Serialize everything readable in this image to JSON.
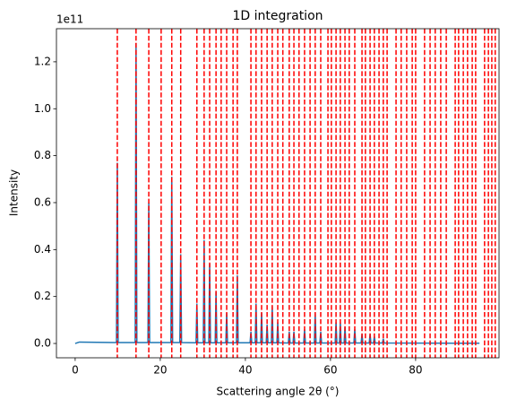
{
  "chart_data": {
    "type": "line",
    "title": "1D integration",
    "xlabel": "Scattering angle 2θ (°)",
    "ylabel": "Intensity",
    "y_offset_text": "1e11",
    "xlim": [
      -4.4,
      99.6
    ],
    "ylim": [
      -0.061,
      1.341
    ],
    "xticks": [
      0,
      20,
      40,
      60,
      80
    ],
    "yticks": [
      {
        "value": 0,
        "label": "0.0"
      },
      0.2,
      0.4,
      0.6,
      0.8,
      {
        "value": 1,
        "label": "1.0"
      },
      1.2
    ],
    "vlines": {
      "color": "#ff0000",
      "x": [
        9.9,
        14.3,
        17.3,
        20.2,
        22.7,
        24.8,
        28.6,
        30.3,
        31.6,
        33.1,
        34.3,
        35.6,
        37.1,
        38.1,
        41.3,
        42.5,
        43.8,
        45.1,
        46.3,
        47.6,
        48.8,
        50.3,
        51.4,
        52.6,
        53.9,
        55.2,
        56.4,
        57.7,
        59.4,
        60.2,
        61.3,
        62.3,
        63.4,
        64.4,
        65.7,
        67.4,
        68.2,
        69.3,
        70.3,
        71.4,
        72.4,
        73.3,
        75.4,
        76.6,
        77.9,
        79.2,
        80.0,
        82.1,
        83.4,
        84.6,
        85.9,
        87.2,
        89.3,
        90.1,
        91.2,
        92.2,
        93.3,
        94.1,
        96.2,
        97.1,
        97.9,
        98.7
      ]
    },
    "color": "#1f77b4",
    "x": [
      0,
      1,
      9.7,
      9.9,
      10.1,
      14.1,
      14.3,
      14.5,
      17.1,
      17.3,
      17.5,
      22.5,
      22.7,
      22.9,
      24.6,
      24.8,
      25.0,
      28.4,
      28.6,
      28.8,
      30.1,
      30.3,
      30.5,
      31.4,
      31.6,
      31.8,
      32.9,
      33.1,
      33.3,
      35.4,
      35.6,
      35.8,
      37.9,
      38.1,
      38.3,
      41.1,
      41.3,
      41.5,
      42.3,
      42.5,
      42.7,
      43.6,
      43.8,
      44.0,
      44.9,
      45.1,
      45.3,
      46.1,
      46.3,
      46.5,
      47.4,
      47.6,
      47.8,
      50.1,
      50.3,
      50.5,
      51.2,
      51.4,
      51.6,
      53.7,
      53.9,
      54.1,
      56.2,
      56.4,
      56.6,
      57.5,
      57.7,
      57.9,
      61.1,
      61.3,
      61.5,
      62.1,
      62.3,
      62.5,
      63.2,
      63.4,
      63.6,
      65.5,
      65.7,
      65.9,
      67.2,
      67.4,
      67.6,
      69.1,
      69.3,
      69.5,
      70.1,
      70.3,
      70.5,
      72.2,
      72.4,
      72.6,
      95
    ],
    "values": [
      0.0,
      0.006,
      0.004,
      0.77,
      0.004,
      0.004,
      1.28,
      0.004,
      0.004,
      0.6,
      0.004,
      0.004,
      0.71,
      0.004,
      0.004,
      0.38,
      0.004,
      0.003,
      0.17,
      0.003,
      0.003,
      0.44,
      0.003,
      0.003,
      0.34,
      0.003,
      0.003,
      0.22,
      0.003,
      0.003,
      0.13,
      0.003,
      0.003,
      0.29,
      0.003,
      0.003,
      0.05,
      0.003,
      0.003,
      0.17,
      0.003,
      0.003,
      0.13,
      0.003,
      0.003,
      0.08,
      0.003,
      0.003,
      0.16,
      0.003,
      0.003,
      0.09,
      0.003,
      0.002,
      0.05,
      0.002,
      0.002,
      0.05,
      0.002,
      0.002,
      0.06,
      0.002,
      0.002,
      0.13,
      0.002,
      0.002,
      0.05,
      0.002,
      0.002,
      0.09,
      0.002,
      0.002,
      0.09,
      0.002,
      0.002,
      0.07,
      0.002,
      0.002,
      0.06,
      0.002,
      0.002,
      0.04,
      0.002,
      0.002,
      0.04,
      0.002,
      0.002,
      0.03,
      0.002,
      0.002,
      0.02,
      0.002,
      0.001
    ]
  }
}
